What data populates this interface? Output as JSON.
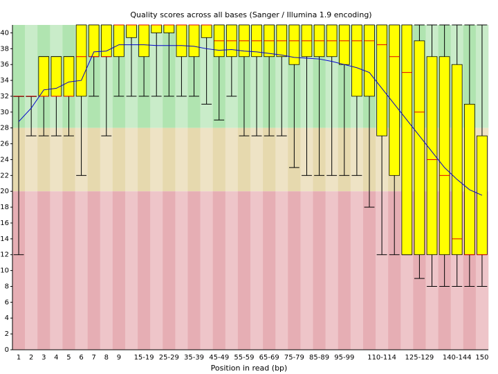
{
  "chart_data": {
    "type": "boxplot",
    "title": "Quality scores across all bases (Sanger / Illumina 1.9 encoding)",
    "x_label": "Position in read (bp)",
    "categories": [
      "1",
      "2",
      "3",
      "4",
      "5",
      "6",
      "7",
      "8",
      "9",
      null,
      "15-19",
      null,
      "25-29",
      null,
      "35-39",
      null,
      "45-49",
      null,
      "55-59",
      null,
      "65-69",
      null,
      "75-79",
      null,
      "85-89",
      null,
      "95-99",
      null,
      null,
      "110-114",
      null,
      null,
      "125-129",
      null,
      null,
      "140-144",
      null,
      "150"
    ],
    "lower_whisker": [
      12,
      27,
      27,
      27,
      27,
      22,
      32,
      27,
      32,
      32,
      32,
      32,
      32,
      32,
      32,
      31,
      29,
      32,
      27,
      27,
      27,
      27,
      23,
      22,
      22,
      22,
      22,
      22,
      18,
      12,
      12,
      12,
      9,
      8,
      8,
      8,
      8,
      8
    ],
    "q1": [
      32,
      32,
      32,
      32,
      32,
      32,
      37,
      37,
      37,
      39.4,
      37,
      40,
      40,
      37,
      37,
      39.4,
      37,
      37,
      37,
      37,
      37,
      37,
      36,
      37,
      37,
      37,
      36,
      32,
      32,
      27,
      22,
      12,
      12,
      12,
      12,
      12,
      12,
      12
    ],
    "median": [
      32,
      32,
      32,
      32,
      32,
      37,
      37,
      37,
      41,
      41,
      41,
      41,
      41,
      41,
      41,
      41,
      39,
      39,
      39,
      39,
      39,
      39,
      39,
      39,
      39,
      39,
      39,
      39,
      39,
      38.5,
      37,
      35,
      30,
      24,
      22,
      14,
      12,
      12
    ],
    "q3": [
      32,
      32,
      37,
      37,
      37,
      41,
      41,
      41,
      41,
      41,
      41,
      41,
      41,
      41,
      41,
      41,
      41,
      41,
      41,
      41,
      41,
      41,
      41,
      41,
      41,
      41,
      41,
      41,
      41,
      41,
      41,
      41,
      39,
      37,
      37,
      36,
      31,
      27
    ],
    "upper_whisker": [
      32,
      32,
      37,
      37,
      37,
      41,
      41,
      41,
      41,
      41,
      41,
      41,
      41,
      41,
      41,
      41,
      41,
      41,
      41,
      41,
      41,
      41,
      41,
      41,
      41,
      41,
      41,
      41,
      41,
      41,
      41,
      41,
      41,
      41,
      41,
      41,
      41,
      41
    ],
    "mean": [
      28.8,
      30.5,
      32.8,
      33,
      33.8,
      34,
      37.6,
      37.7,
      38.5,
      38.5,
      38.5,
      38.4,
      38.4,
      38.4,
      38.3,
      38,
      37.8,
      37.9,
      37.7,
      37.6,
      37.4,
      37.2,
      36.9,
      36.8,
      36.7,
      36.4,
      36,
      35.6,
      35,
      33,
      31,
      29,
      27,
      25,
      23,
      21.5,
      20.2,
      19.5
    ],
    "box_color": "#ffff00",
    "median_color": "#e00000",
    "mean_color": "#0000cc",
    "zones": [
      {
        "from": 28,
        "to": 41,
        "colors": [
          "#b0e4b0",
          "#c9ecc9"
        ]
      },
      {
        "from": 20,
        "to": 28,
        "colors": [
          "#e6d9ae",
          "#eee3c5"
        ]
      },
      {
        "from": 0,
        "to": 20,
        "colors": [
          "#e6aeb4",
          "#eec5c9"
        ]
      }
    ],
    "ylim": [
      0,
      41
    ],
    "yticks": [
      0,
      2,
      4,
      6,
      8,
      10,
      12,
      14,
      16,
      18,
      20,
      22,
      24,
      26,
      28,
      30,
      32,
      34,
      36,
      38,
      40
    ]
  }
}
